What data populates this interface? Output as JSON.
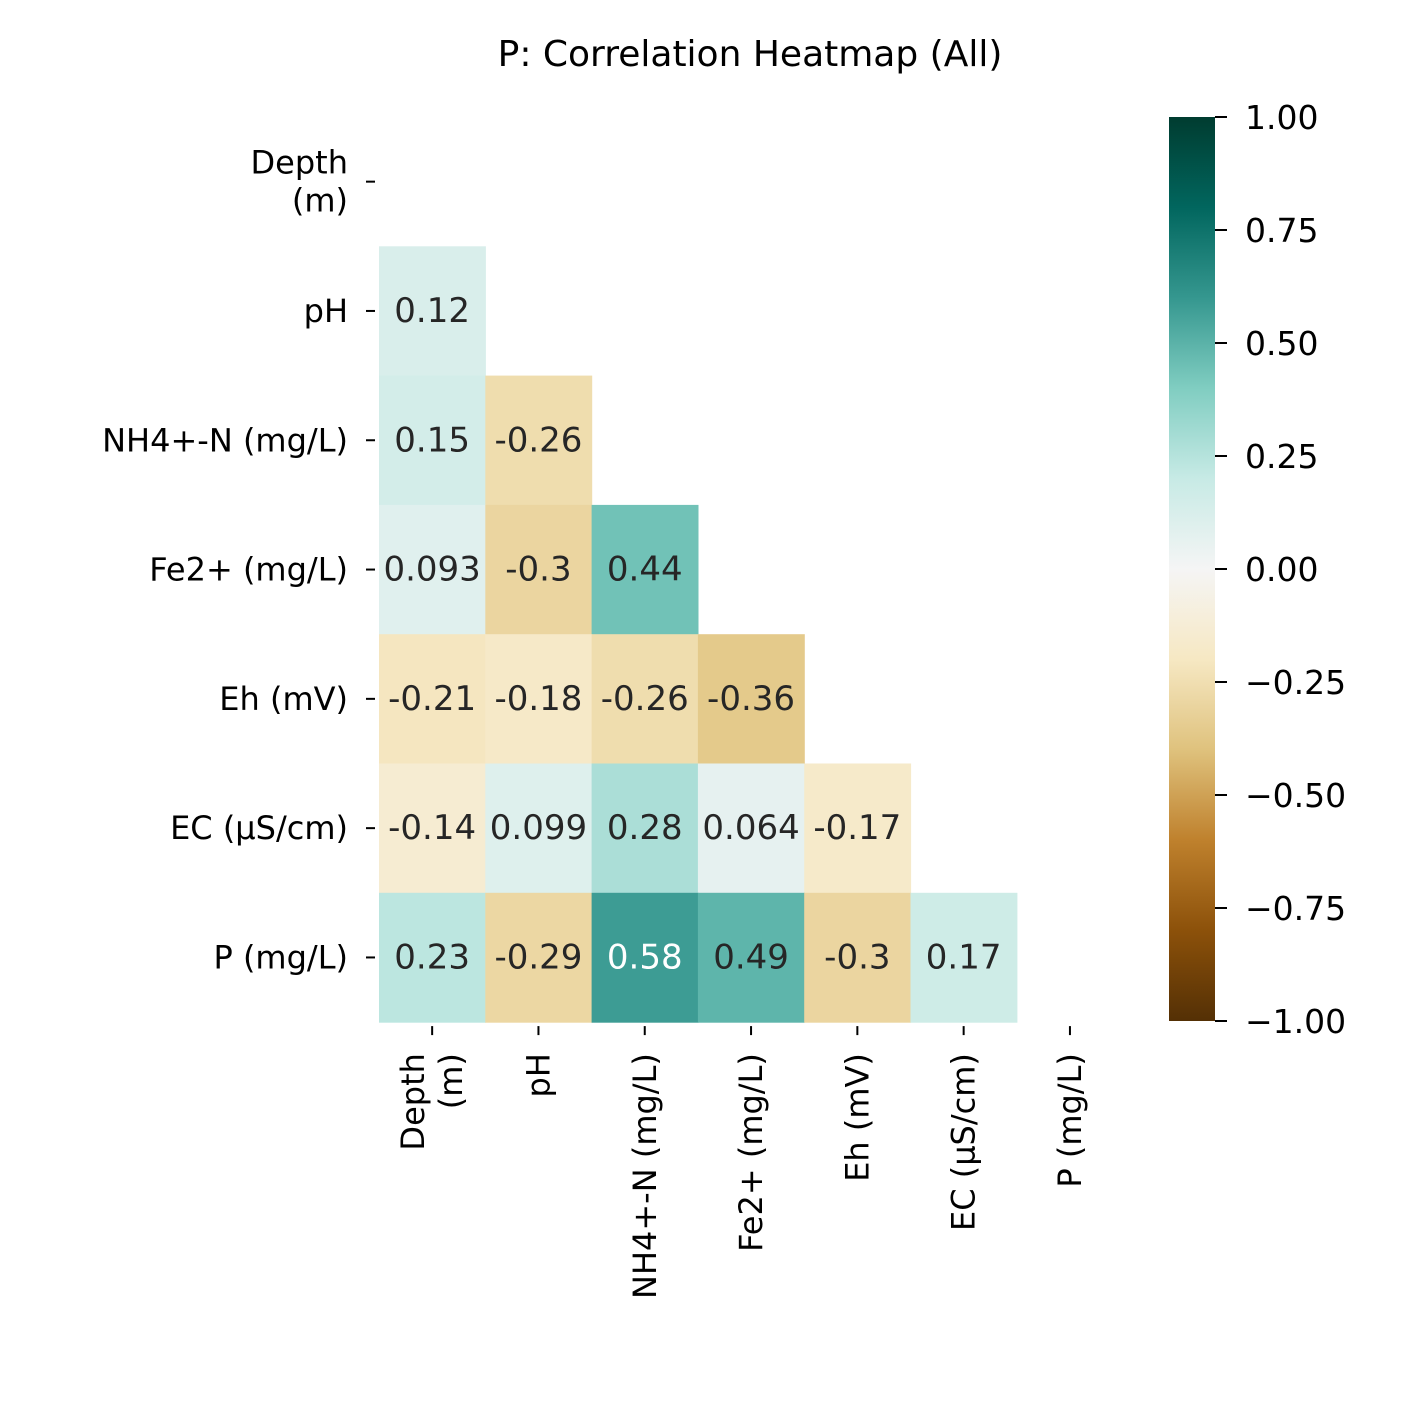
{
  "chart_data": {
    "type": "heatmap",
    "title": "P: Correlation Heatmap (All)",
    "row_labels": [
      [
        "Depth",
        "(m)"
      ],
      [
        "pH"
      ],
      [
        "NH4+-N (mg/L)"
      ],
      [
        "Fe2+ (mg/L)"
      ],
      [
        "Eh (mV)"
      ],
      [
        "EC (µS/cm)"
      ],
      [
        "P (mg/L)"
      ]
    ],
    "col_labels": [
      [
        "Depth",
        "(m)"
      ],
      [
        "pH"
      ],
      [
        "NH4+-N (mg/L)"
      ],
      [
        "Fe2+ (mg/L)"
      ],
      [
        "Eh (mV)"
      ],
      [
        "EC (µS/cm)"
      ],
      [
        "P (mg/L)"
      ]
    ],
    "cells": [
      {
        "row": 1,
        "col": 0,
        "value": 0.12,
        "label": "0.12"
      },
      {
        "row": 2,
        "col": 0,
        "value": 0.15,
        "label": "0.15"
      },
      {
        "row": 2,
        "col": 1,
        "value": -0.26,
        "label": "-0.26"
      },
      {
        "row": 3,
        "col": 0,
        "value": 0.093,
        "label": "0.093"
      },
      {
        "row": 3,
        "col": 1,
        "value": -0.3,
        "label": "-0.3"
      },
      {
        "row": 3,
        "col": 2,
        "value": 0.44,
        "label": "0.44"
      },
      {
        "row": 4,
        "col": 0,
        "value": -0.21,
        "label": "-0.21"
      },
      {
        "row": 4,
        "col": 1,
        "value": -0.18,
        "label": "-0.18"
      },
      {
        "row": 4,
        "col": 2,
        "value": -0.26,
        "label": "-0.26"
      },
      {
        "row": 4,
        "col": 3,
        "value": -0.36,
        "label": "-0.36"
      },
      {
        "row": 5,
        "col": 0,
        "value": -0.14,
        "label": "-0.14"
      },
      {
        "row": 5,
        "col": 1,
        "value": 0.099,
        "label": "0.099"
      },
      {
        "row": 5,
        "col": 2,
        "value": 0.28,
        "label": "0.28"
      },
      {
        "row": 5,
        "col": 3,
        "value": 0.064,
        "label": "0.064"
      },
      {
        "row": 5,
        "col": 4,
        "value": -0.17,
        "label": "-0.17"
      },
      {
        "row": 6,
        "col": 0,
        "value": 0.23,
        "label": "0.23"
      },
      {
        "row": 6,
        "col": 1,
        "value": -0.29,
        "label": "-0.29"
      },
      {
        "row": 6,
        "col": 2,
        "value": 0.58,
        "label": "0.58"
      },
      {
        "row": 6,
        "col": 3,
        "value": 0.49,
        "label": "0.49"
      },
      {
        "row": 6,
        "col": 4,
        "value": -0.3,
        "label": "-0.3"
      },
      {
        "row": 6,
        "col": 5,
        "value": 0.17,
        "label": "0.17"
      }
    ],
    "mask": "upper-triangle-and-diagonal",
    "colormap": "BrBG",
    "vmin": -1.0,
    "vmax": 1.0,
    "colorbar_ticks": [
      1.0,
      0.75,
      0.5,
      0.25,
      0.0,
      -0.25,
      -0.5,
      -0.75,
      -1.0
    ],
    "colorbar_tick_labels": [
      "1.00",
      "0.75",
      "0.50",
      "0.25",
      "0.00",
      "−0.25",
      "−0.50",
      "−0.75",
      "−1.00"
    ]
  }
}
